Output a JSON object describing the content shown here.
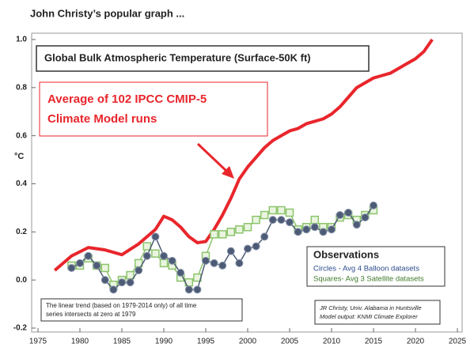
{
  "chart_data": {
    "type": "line",
    "title": "John Christy’s popular graph ...",
    "box_title": "Global Bulk Atmospheric Temperature (Surface-50K ft)",
    "model_annotation": [
      "Average of 102 IPCC CMIP-5",
      "Climate Model runs"
    ],
    "y_label": "°C",
    "legend": {
      "title": "Observations",
      "lines": [
        "Circles - Avg 4 Balloon datasets",
        "Squares- Avg 3 Satellite datasets"
      ]
    },
    "note": [
      "The linear trend (based on 1979-2014 only) of all time",
      "series intersects at zero at 1979"
    ],
    "credit": [
      "JR Christy, Univ. Alabama in Huntsville",
      "Model output: KNMI Climate Explorer"
    ],
    "xlim": [
      1975,
      2025
    ],
    "xticks": [
      1975,
      1980,
      1985,
      1990,
      1995,
      2000,
      2005,
      2010,
      2015,
      2020,
      2025
    ],
    "ylim": [
      -0.2,
      1.0
    ],
    "yticks": [
      {
        "value": 1,
        "label": "1.0"
      },
      0.8,
      0.6,
      0.4,
      0.2,
      {
        "value": 0,
        "label": "0.0"
      },
      -0.2
    ],
    "series": [
      {
        "color": "#e8262c",
        "marker": "none",
        "x": [
          1977,
          1979,
          1981,
          1983,
          1985,
          1987,
          1989,
          1990,
          1991,
          1992,
          1993,
          1994,
          1995,
          1996,
          1997,
          1998,
          1999,
          2000,
          2001,
          2002,
          2003,
          2004,
          2005,
          2006,
          2007,
          2008,
          2009,
          2010,
          2011,
          2012,
          2013,
          2014,
          2015,
          2016,
          2017,
          2018,
          2019,
          2020,
          2021,
          2022
        ],
        "values": [
          0.04,
          0.1,
          0.135,
          0.125,
          0.105,
          0.15,
          0.21,
          0.265,
          0.25,
          0.22,
          0.18,
          0.155,
          0.16,
          0.21,
          0.27,
          0.34,
          0.42,
          0.47,
          0.51,
          0.55,
          0.58,
          0.6,
          0.62,
          0.63,
          0.65,
          0.66,
          0.67,
          0.69,
          0.72,
          0.76,
          0.8,
          0.82,
          0.84,
          0.85,
          0.86,
          0.88,
          0.9,
          0.92,
          0.95,
          1.0
        ]
      },
      {
        "color": "#8cc46c",
        "fill": "#eaf5e0",
        "marker": "square",
        "x": [
          1979,
          1980,
          1981,
          1982,
          1983,
          1984,
          1985,
          1986,
          1987,
          1988,
          1989,
          1990,
          1991,
          1992,
          1993,
          1994,
          1995,
          1996,
          1997,
          1998,
          1999,
          2000,
          2001,
          2002,
          2003,
          2004,
          2005,
          2006,
          2007,
          2008,
          2009,
          2010,
          2011,
          2012,
          2013,
          2014,
          2015
        ],
        "values": [
          0.06,
          0.06,
          0.09,
          0.06,
          0.05,
          -0.02,
          0.0,
          0.02,
          0.07,
          0.14,
          0.11,
          0.07,
          0.06,
          0.01,
          -0.01,
          0.01,
          0.1,
          0.19,
          0.19,
          0.2,
          0.21,
          0.22,
          0.25,
          0.27,
          0.29,
          0.29,
          0.28,
          0.21,
          0.22,
          0.25,
          0.22,
          0.22,
          0.26,
          0.27,
          0.25,
          0.27,
          0.29
        ]
      },
      {
        "color": "#4d5b76",
        "fill": "#4d5b76",
        "marker": "circle",
        "x": [
          1979,
          1980,
          1981,
          1982,
          1983,
          1984,
          1985,
          1986,
          1987,
          1988,
          1989,
          1990,
          1991,
          1992,
          1993,
          1994,
          1995,
          1996,
          1997,
          1998,
          1999,
          2000,
          2001,
          2002,
          2003,
          2004,
          2005,
          2006,
          2007,
          2008,
          2009,
          2010,
          2011,
          2012,
          2013,
          2014,
          2015
        ],
        "values": [
          0.05,
          0.07,
          0.1,
          0.06,
          0.0,
          -0.04,
          -0.01,
          -0.01,
          0.04,
          0.1,
          0.18,
          0.1,
          0.08,
          0.03,
          -0.04,
          -0.04,
          0.08,
          0.07,
          0.06,
          0.12,
          0.07,
          0.13,
          0.14,
          0.18,
          0.25,
          0.25,
          0.24,
          0.2,
          0.21,
          0.22,
          0.2,
          0.21,
          0.27,
          0.28,
          0.23,
          0.26,
          0.31
        ]
      }
    ]
  }
}
